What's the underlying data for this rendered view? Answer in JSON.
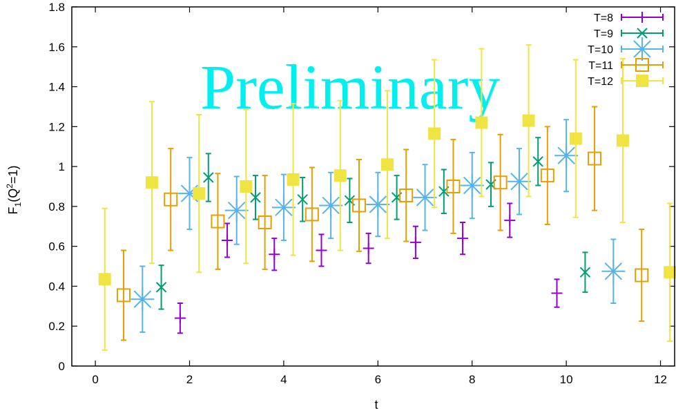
{
  "chart_data": {
    "type": "scatter",
    "xlabel": "t",
    "ylabel": "F1(Q2=1)",
    "ylabel_parts": {
      "main": "F",
      "sub": "1",
      "mid": "(Q",
      "sup": "2",
      "end": "=1)"
    },
    "watermark": "Preliminary",
    "xlim": [
      -0.5,
      12.3
    ],
    "ylim": [
      0,
      1.8
    ],
    "xticks": [
      0,
      2,
      4,
      6,
      8,
      10,
      12
    ],
    "yticks": [
      0,
      0.2,
      0.4,
      0.6,
      0.8,
      1,
      1.2,
      1.4,
      1.6,
      1.8
    ],
    "ytick_labels": [
      "0",
      "0.2",
      "0.4",
      "0.6",
      "0.8",
      "1",
      "1.2",
      "1.4",
      "1.6",
      "1.8"
    ],
    "legend_position": "top-right",
    "series": [
      {
        "name": "T=8",
        "color": "#9400d3",
        "marker": "plus",
        "points": [
          {
            "x": 1.8,
            "y": 0.24,
            "err": 0.075
          },
          {
            "x": 2.8,
            "y": 0.63,
            "err": 0.085
          },
          {
            "x": 3.8,
            "y": 0.56,
            "err": 0.08
          },
          {
            "x": 4.8,
            "y": 0.58,
            "err": 0.08
          },
          {
            "x": 5.8,
            "y": 0.59,
            "err": 0.075
          },
          {
            "x": 6.8,
            "y": 0.62,
            "err": 0.08
          },
          {
            "x": 7.8,
            "y": 0.64,
            "err": 0.08
          },
          {
            "x": 8.8,
            "y": 0.73,
            "err": 0.085
          },
          {
            "x": 9.8,
            "y": 0.365,
            "err": 0.07
          }
        ]
      },
      {
        "name": "T=9",
        "color": "#009e73",
        "marker": "cross",
        "points": [
          {
            "x": 1.4,
            "y": 0.395,
            "err": 0.11
          },
          {
            "x": 2.4,
            "y": 0.945,
            "err": 0.12
          },
          {
            "x": 3.4,
            "y": 0.845,
            "err": 0.11
          },
          {
            "x": 4.4,
            "y": 0.835,
            "err": 0.11
          },
          {
            "x": 5.4,
            "y": 0.83,
            "err": 0.11
          },
          {
            "x": 6.4,
            "y": 0.845,
            "err": 0.11
          },
          {
            "x": 7.4,
            "y": 0.875,
            "err": 0.11
          },
          {
            "x": 8.4,
            "y": 0.91,
            "err": 0.11
          },
          {
            "x": 9.4,
            "y": 1.025,
            "err": 0.12
          },
          {
            "x": 10.4,
            "y": 0.47,
            "err": 0.1
          }
        ]
      },
      {
        "name": "T=10",
        "color": "#56b4e9",
        "marker": "star",
        "points": [
          {
            "x": 1.0,
            "y": 0.335,
            "err": 0.165
          },
          {
            "x": 2.0,
            "y": 0.865,
            "err": 0.18
          },
          {
            "x": 3.0,
            "y": 0.78,
            "err": 0.17
          },
          {
            "x": 4.0,
            "y": 0.795,
            "err": 0.165
          },
          {
            "x": 5.0,
            "y": 0.805,
            "err": 0.165
          },
          {
            "x": 6.0,
            "y": 0.81,
            "err": 0.16
          },
          {
            "x": 7.0,
            "y": 0.845,
            "err": 0.165
          },
          {
            "x": 8.0,
            "y": 0.905,
            "err": 0.165
          },
          {
            "x": 9.0,
            "y": 0.925,
            "err": 0.165
          },
          {
            "x": 10.0,
            "y": 1.055,
            "err": 0.18
          },
          {
            "x": 11.0,
            "y": 0.475,
            "err": 0.16
          }
        ]
      },
      {
        "name": "T=11",
        "color": "#e69f00",
        "marker": "open-square",
        "points": [
          {
            "x": 0.6,
            "y": 0.355,
            "err": 0.225
          },
          {
            "x": 1.6,
            "y": 0.835,
            "err": 0.255
          },
          {
            "x": 2.6,
            "y": 0.725,
            "err": 0.24
          },
          {
            "x": 3.6,
            "y": 0.72,
            "err": 0.235
          },
          {
            "x": 4.6,
            "y": 0.76,
            "err": 0.235
          },
          {
            "x": 5.6,
            "y": 0.805,
            "err": 0.23
          },
          {
            "x": 6.6,
            "y": 0.855,
            "err": 0.23
          },
          {
            "x": 7.6,
            "y": 0.9,
            "err": 0.235
          },
          {
            "x": 8.6,
            "y": 0.92,
            "err": 0.24
          },
          {
            "x": 9.6,
            "y": 0.955,
            "err": 0.245
          },
          {
            "x": 10.6,
            "y": 1.04,
            "err": 0.26
          },
          {
            "x": 11.6,
            "y": 0.455,
            "err": 0.23
          }
        ]
      },
      {
        "name": "T=12",
        "color": "#f0e442",
        "marker": "filled-square",
        "points": [
          {
            "x": 0.2,
            "y": 0.435,
            "err": 0.355
          },
          {
            "x": 1.2,
            "y": 0.92,
            "err": 0.405
          },
          {
            "x": 2.2,
            "y": 0.865,
            "err": 0.395
          },
          {
            "x": 3.2,
            "y": 0.9,
            "err": 0.385
          },
          {
            "x": 4.2,
            "y": 0.935,
            "err": 0.38
          },
          {
            "x": 5.2,
            "y": 0.955,
            "err": 0.375
          },
          {
            "x": 6.2,
            "y": 1.01,
            "err": 0.37
          },
          {
            "x": 7.2,
            "y": 1.165,
            "err": 0.37
          },
          {
            "x": 8.2,
            "y": 1.22,
            "err": 0.37
          },
          {
            "x": 9.2,
            "y": 1.23,
            "err": 0.38
          },
          {
            "x": 10.2,
            "y": 1.14,
            "err": 0.395
          },
          {
            "x": 11.2,
            "y": 1.13,
            "err": 0.41
          },
          {
            "x": 12.2,
            "y": 0.47,
            "err": 0.345
          }
        ]
      }
    ]
  }
}
